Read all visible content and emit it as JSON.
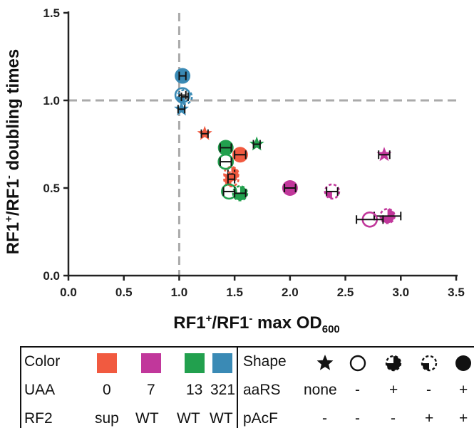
{
  "colors": {
    "red": "#f15a40",
    "magenta": "#c1379b",
    "green": "#22a04e",
    "blue": "#3a8ab5",
    "grid": "#aaaaaa"
  },
  "chart_data": {
    "type": "scatter",
    "xlabel": "RF1⁺/RF1⁻ max OD₆₀₀",
    "xlabel_parts": {
      "a": "RF1",
      "a_sup": "+",
      "b": "/RF1",
      "b_sup": "-",
      "c": " max OD",
      "c_sub": "600"
    },
    "ylabel_parts": {
      "a": "RF1",
      "a_sup": "+",
      "b": "/RF1",
      "b_sup": "-",
      "c": " doubling times"
    },
    "xlim": [
      0,
      3.5
    ],
    "ylim": [
      0,
      1.5
    ],
    "xticks": [
      "0.0",
      "0.5",
      "1.0",
      "1.5",
      "2.0",
      "2.5",
      "3.0",
      "3.5"
    ],
    "yticks": [
      "0.0",
      "0.5",
      "1.0",
      "1.5"
    ],
    "reference_lines": {
      "x": 1.0,
      "y": 1.0
    },
    "points": [
      {
        "uaa": "0",
        "shape": "star",
        "x": 1.23,
        "y": 0.81,
        "xerr": 0.03
      },
      {
        "uaa": "0",
        "shape": "filled",
        "x": 1.55,
        "y": 0.69,
        "xerr": 0.05
      },
      {
        "uaa": "0",
        "shape": "dash-filled",
        "x": 1.47,
        "y": 0.58,
        "xerr": 0.03
      },
      {
        "uaa": "0",
        "shape": "dashed",
        "x": 1.47,
        "y": 0.55,
        "xerr": 0.03
      },
      {
        "uaa": "7",
        "shape": "star",
        "x": 2.85,
        "y": 0.69,
        "xerr": 0.05
      },
      {
        "uaa": "7",
        "shape": "filled",
        "x": 2.0,
        "y": 0.5,
        "xerr": 0.05
      },
      {
        "uaa": "7",
        "shape": "dashed",
        "x": 2.38,
        "y": 0.48,
        "xerr": 0.05
      },
      {
        "uaa": "7",
        "shape": "dash-filled",
        "x": 2.88,
        "y": 0.34,
        "xerr": 0.12
      },
      {
        "uaa": "7",
        "shape": "open",
        "x": 2.72,
        "y": 0.32,
        "xerr": 0.12
      },
      {
        "uaa": "13",
        "shape": "star",
        "x": 1.7,
        "y": 0.75,
        "xerr": 0.03
      },
      {
        "uaa": "13",
        "shape": "filled",
        "x": 1.42,
        "y": 0.73,
        "xerr": 0.05
      },
      {
        "uaa": "13",
        "shape": "open",
        "x": 1.42,
        "y": 0.65,
        "xerr": 0.05
      },
      {
        "uaa": "13",
        "shape": "open",
        "x": 1.45,
        "y": 0.48,
        "xerr": 0.05
      },
      {
        "uaa": "13",
        "shape": "dash-filled",
        "x": 1.55,
        "y": 0.47,
        "xerr": 0.05
      },
      {
        "uaa": "321",
        "shape": "filled",
        "x": 1.03,
        "y": 1.14,
        "xerr": 0.03
      },
      {
        "uaa": "321",
        "shape": "open",
        "x": 1.03,
        "y": 1.03,
        "xerr": 0.03
      },
      {
        "uaa": "321",
        "shape": "dashed",
        "x": 1.05,
        "y": 1.02,
        "xerr": 0.03
      },
      {
        "uaa": "321",
        "shape": "star",
        "x": 1.02,
        "y": 0.95,
        "xerr": 0.03
      }
    ]
  },
  "legend": {
    "color_label": "Color",
    "uaa_label": "UAA",
    "rf2_label": "RF2",
    "columns": [
      {
        "color": "#f15a40",
        "uaa": "0",
        "rf2": "sup"
      },
      {
        "color": "#c1379b",
        "uaa": "7",
        "rf2": "WT"
      },
      {
        "color": "#22a04e",
        "uaa": "13",
        "rf2": "WT"
      },
      {
        "color": "#3a8ab5",
        "uaa": "321",
        "rf2": "WT"
      }
    ],
    "shape_label": "Shape",
    "aars_label": "aaRS",
    "pacf_label": "pAcF",
    "shapes": [
      {
        "icon": "star-icon",
        "aars": "none",
        "pacf": "-"
      },
      {
        "icon": "open-circle-icon",
        "aars": "-",
        "pacf": "-"
      },
      {
        "icon": "dashed-half-filled-icon",
        "aars": "+",
        "pacf": "-"
      },
      {
        "icon": "dashed-circle-icon",
        "aars": "-",
        "pacf": "+"
      },
      {
        "icon": "filled-circle-icon",
        "aars": "+",
        "pacf": "+"
      }
    ]
  }
}
